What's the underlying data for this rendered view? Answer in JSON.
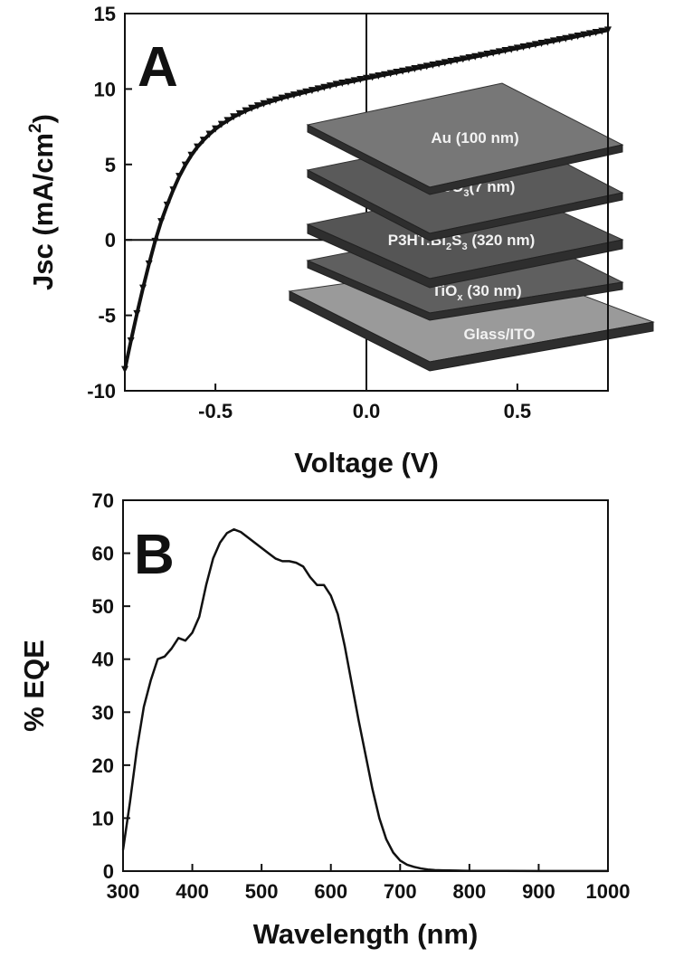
{
  "chart_data": [
    {
      "type": "line",
      "panel_label": "A",
      "xlabel": "Voltage (V)",
      "ylabel": "Jsc (mA/cm",
      "ylabel_sup": "2",
      "ylabel_end": ")",
      "xlim": [
        -0.8,
        0.8
      ],
      "ylim": [
        -10,
        15
      ],
      "xticks": [
        -0.5,
        0.0,
        0.5
      ],
      "xtick_labels": [
        "-0.5",
        "0.0",
        "0.5"
      ],
      "yticks": [
        -10,
        -5,
        0,
        5,
        10,
        15
      ],
      "ytick_labels": [
        "-10",
        "-5",
        "0",
        "5",
        "10",
        "15"
      ],
      "zero_lines": true,
      "marker": "triangle-down",
      "series": [
        {
          "x": [
            -0.8,
            -0.78,
            -0.76,
            -0.74,
            -0.72,
            -0.7,
            -0.68,
            -0.66,
            -0.64,
            -0.62,
            -0.6,
            -0.58,
            -0.56,
            -0.54,
            -0.52,
            -0.5,
            -0.48,
            -0.46,
            -0.44,
            -0.42,
            -0.4,
            -0.38,
            -0.36,
            -0.34,
            -0.32,
            -0.3,
            -0.28,
            -0.26,
            -0.24,
            -0.22,
            -0.2,
            -0.18,
            -0.16,
            -0.14,
            -0.12,
            -0.1,
            -0.08,
            -0.06,
            -0.04,
            -0.02,
            0.0,
            0.02,
            0.04,
            0.06,
            0.08,
            0.1,
            0.12,
            0.14,
            0.16,
            0.18,
            0.2,
            0.22,
            0.24,
            0.26,
            0.28,
            0.3,
            0.32,
            0.34,
            0.36,
            0.38,
            0.4,
            0.42,
            0.44,
            0.46,
            0.48,
            0.5,
            0.52,
            0.54,
            0.56,
            0.58,
            0.6,
            0.62,
            0.64,
            0.66,
            0.68,
            0.7,
            0.72,
            0.74,
            0.76,
            0.78,
            0.8
          ],
          "y": [
            -8.6,
            -6.7,
            -4.9,
            -3.2,
            -1.6,
            -0.1,
            1.2,
            2.3,
            3.3,
            4.2,
            4.95,
            5.6,
            6.15,
            6.6,
            7.0,
            7.35,
            7.65,
            7.9,
            8.15,
            8.35,
            8.55,
            8.72,
            8.88,
            9.02,
            9.15,
            9.27,
            9.39,
            9.5,
            9.6,
            9.7,
            9.8,
            9.9,
            10.0,
            10.1,
            10.2,
            10.3,
            10.38,
            10.46,
            10.54,
            10.62,
            10.7,
            10.78,
            10.86,
            10.94,
            11.02,
            11.1,
            11.18,
            11.26,
            11.34,
            11.42,
            11.5,
            11.58,
            11.66,
            11.74,
            11.82,
            11.9,
            11.98,
            12.06,
            12.14,
            12.22,
            12.3,
            12.38,
            12.46,
            12.54,
            12.62,
            12.7,
            12.78,
            12.86,
            12.94,
            13.02,
            13.1,
            13.18,
            13.26,
            13.34,
            13.42,
            13.5,
            13.58,
            13.66,
            13.74,
            13.82,
            13.9
          ]
        }
      ],
      "inset": {
        "layers": [
          {
            "text": "Au (100 nm)",
            "color": "#777777"
          },
          {
            "text": "MoO",
            "sub": "3",
            "tail": "(7 nm)",
            "color": "#5a5a5a"
          },
          {
            "text": "P3HT:Bi",
            "sub": "2",
            "mid": "S",
            "sub2": "3",
            "tail": " (320 nm)",
            "color": "#555555"
          },
          {
            "text": "TiO",
            "sub": "x",
            "tail": " (30 nm)",
            "color": "#5f5f5f"
          },
          {
            "text": "Glass/ITO",
            "color": "#9a9a9a"
          }
        ]
      }
    },
    {
      "type": "line",
      "panel_label": "B",
      "xlabel": "Wavelength (nm)",
      "ylabel": "% EQE",
      "xlim": [
        300,
        1000
      ],
      "ylim": [
        0,
        70
      ],
      "xticks": [
        300,
        400,
        500,
        600,
        700,
        800,
        900,
        1000
      ],
      "xtick_labels": [
        "300",
        "400",
        "500",
        "600",
        "700",
        "800",
        "900",
        "1000"
      ],
      "yticks": [
        0,
        10,
        20,
        30,
        40,
        50,
        60,
        70
      ],
      "ytick_labels": [
        "0",
        "10",
        "20",
        "30",
        "40",
        "50",
        "60",
        "70"
      ],
      "series": [
        {
          "x": [
            300,
            310,
            320,
            330,
            340,
            350,
            360,
            370,
            380,
            390,
            400,
            410,
            420,
            430,
            440,
            450,
            460,
            470,
            480,
            490,
            500,
            510,
            520,
            530,
            540,
            550,
            560,
            570,
            580,
            590,
            600,
            610,
            620,
            630,
            640,
            650,
            660,
            670,
            680,
            690,
            700,
            710,
            720,
            730,
            740,
            750,
            760,
            780,
            800,
            850,
            900,
            950,
            1000
          ],
          "y": [
            4,
            13,
            23,
            31,
            36,
            40,
            40.5,
            42,
            44,
            43.5,
            45,
            48,
            54,
            59,
            62,
            63.8,
            64.5,
            64,
            63,
            62,
            61,
            60,
            59,
            58.5,
            58.5,
            58.2,
            57.5,
            55.5,
            54,
            54,
            52,
            48.5,
            42.5,
            35.5,
            28.5,
            22,
            15.5,
            10,
            6,
            3.5,
            2,
            1.2,
            0.8,
            0.5,
            0.3,
            0.2,
            0.15,
            0.1,
            0.05,
            0.05,
            0.03,
            0.02,
            0.02
          ]
        }
      ]
    }
  ]
}
